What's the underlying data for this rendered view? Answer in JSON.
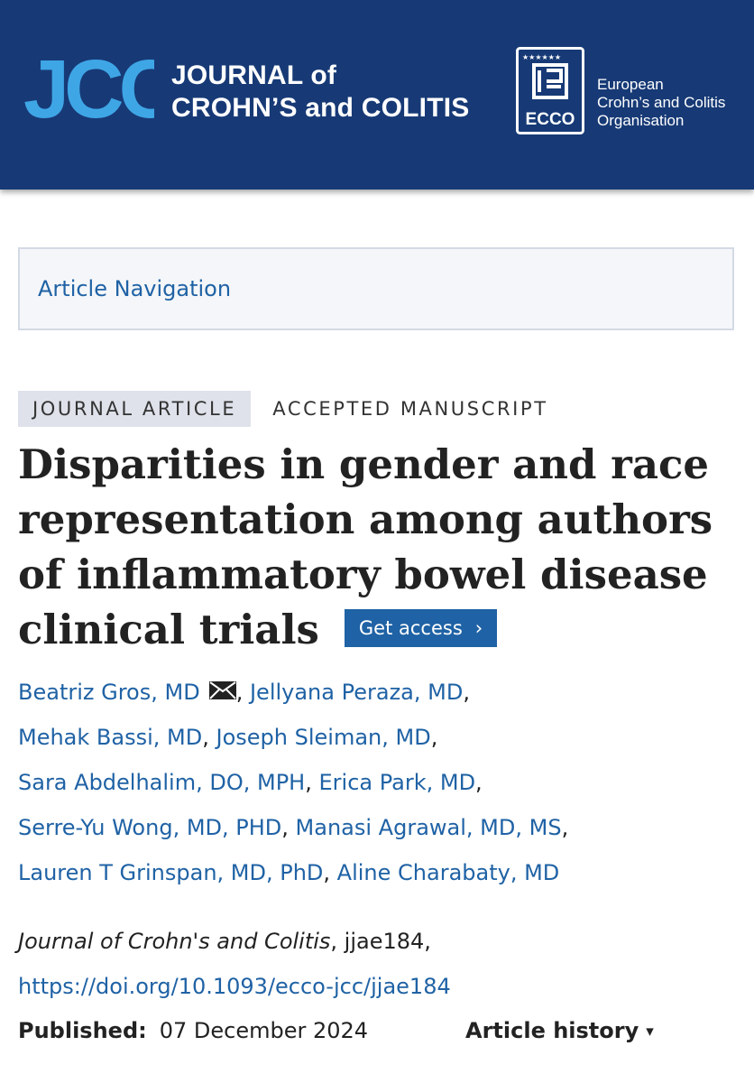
{
  "header": {
    "logo_text": "JCC",
    "journal_line1": "JOURNAL of",
    "journal_line2": "CROHN’S and COLITIS",
    "ecco_text": "ECCO",
    "org_line1": "European",
    "org_line2": "Crohn’s and Colitis",
    "org_line3": "Organisation",
    "colors": {
      "header_bg": "#173a76",
      "logo_light": "#3fa6e6",
      "link": "#1f62a5"
    }
  },
  "nav": {
    "label": "Article Navigation"
  },
  "article": {
    "type_tag": "JOURNAL ARTICLE",
    "status_tag": "ACCEPTED MANUSCRIPT",
    "title": "Disparities in gender and race representation among authors of inflammatory bowel disease clinical trials",
    "access_button": "Get access",
    "access_chevron": "›",
    "authors": [
      "Beatriz Gros, MD",
      "Jellyana Peraza, MD",
      "Mehak Bassi, MD",
      "Joseph Sleiman, MD",
      "Sara Abdelhalim, DO, MPH",
      "Erica Park, MD",
      "Serre-Yu Wong, MD, PHD",
      "Manasi Agrawal, MD, MS",
      "Lauren T Grinspan, MD, PhD",
      "Aline Charabaty, MD"
    ],
    "author_separator": ",",
    "citation_journal": "Journal of Crohn's and Colitis",
    "citation_id": ", jjae184,",
    "doi": "https://doi.org/10.1093/ecco-jcc/jjae184",
    "published_label": "Published:",
    "published_date": "07 December 2024",
    "history_label": "Article history",
    "history_caret": "▾"
  }
}
